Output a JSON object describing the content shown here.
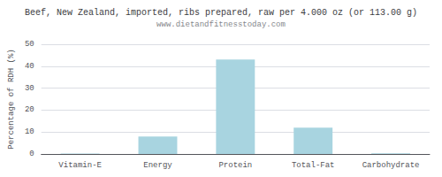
{
  "chart_data": {
    "type": "bar",
    "title": "Beef, New Zealand, imported, ribs prepared, raw per 4.000 oz (or 113.00 g)",
    "subtitle": "www.dietandfitnesstoday.com",
    "categories": [
      "Vitamin-E",
      "Energy",
      "Protein",
      "Total-Fat",
      "Carbohydrate"
    ],
    "values": [
      0.2,
      8.0,
      43.0,
      12.0,
      0.3
    ],
    "color": "#a8d4e0",
    "ylabel": "Percentage of RDH (%)",
    "ylim": [
      0,
      50
    ],
    "yticks": [
      0,
      10,
      20,
      30,
      40,
      50
    ],
    "grid": true
  }
}
